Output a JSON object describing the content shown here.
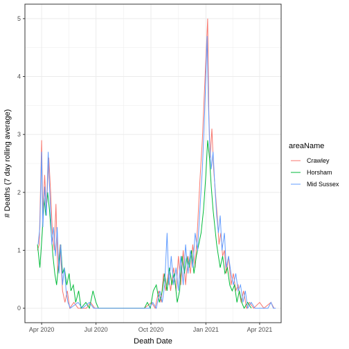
{
  "chart_data": {
    "type": "line",
    "xlabel": "Death Date",
    "ylabel": "# Deaths (7 day rolling average)",
    "xlim": [
      "2020-03-04",
      "2021-05-07"
    ],
    "ylim": [
      -0.25,
      5.25
    ],
    "x_ticks": [
      {
        "date": "2020-04-01",
        "label": "Apr 2020"
      },
      {
        "date": "2020-07-01",
        "label": "Jul 2020"
      },
      {
        "date": "2020-10-01",
        "label": "Oct 2020"
      },
      {
        "date": "2021-01-01",
        "label": "Jan 2021"
      },
      {
        "date": "2021-04-01",
        "label": "Apr 2021"
      }
    ],
    "y_ticks": [
      0,
      1,
      2,
      3,
      4,
      5
    ],
    "grid": true,
    "legend": {
      "title": "areaName",
      "position": "right"
    },
    "series": [
      {
        "name": "Crawley",
        "color": "#F8766D",
        "points": [
          [
            "2020-03-25",
            1.0
          ],
          [
            "2020-03-28",
            1.1
          ],
          [
            "2020-04-01",
            2.9
          ],
          [
            "2020-04-03",
            1.6
          ],
          [
            "2020-04-06",
            2.3
          ],
          [
            "2020-04-09",
            1.7
          ],
          [
            "2020-04-13",
            2.6
          ],
          [
            "2020-04-16",
            2.0
          ],
          [
            "2020-04-19",
            1.3
          ],
          [
            "2020-04-22",
            1.0
          ],
          [
            "2020-04-25",
            1.8
          ],
          [
            "2020-04-28",
            0.6
          ],
          [
            "2020-05-02",
            1.1
          ],
          [
            "2020-05-06",
            0.3
          ],
          [
            "2020-05-10",
            0.1
          ],
          [
            "2020-05-14",
            0.3
          ],
          [
            "2020-05-18",
            0.0
          ],
          [
            "2020-05-25",
            0.1
          ],
          [
            "2020-06-01",
            0.0
          ],
          [
            "2020-06-15",
            0.0
          ],
          [
            "2020-06-22",
            0.1
          ],
          [
            "2020-06-29",
            0.0
          ],
          [
            "2020-09-20",
            0.0
          ],
          [
            "2020-10-02",
            0.1
          ],
          [
            "2020-10-08",
            0.0
          ],
          [
            "2020-10-14",
            0.3
          ],
          [
            "2020-10-18",
            0.1
          ],
          [
            "2020-10-22",
            0.6
          ],
          [
            "2020-10-26",
            0.3
          ],
          [
            "2020-10-30",
            0.6
          ],
          [
            "2020-11-03",
            0.3
          ],
          [
            "2020-11-08",
            0.7
          ],
          [
            "2020-11-12",
            0.3
          ],
          [
            "2020-11-16",
            0.9
          ],
          [
            "2020-11-20",
            0.4
          ],
          [
            "2020-11-24",
            1.0
          ],
          [
            "2020-11-28",
            0.4
          ],
          [
            "2020-12-02",
            0.9
          ],
          [
            "2020-12-06",
            0.6
          ],
          [
            "2020-12-10",
            1.1
          ],
          [
            "2020-12-14",
            0.7
          ],
          [
            "2020-12-18",
            1.4
          ],
          [
            "2020-12-22",
            2.2
          ],
          [
            "2020-12-26",
            2.9
          ],
          [
            "2020-12-29",
            3.6
          ],
          [
            "2021-01-01",
            4.3
          ],
          [
            "2021-01-04",
            5.0
          ],
          [
            "2021-01-06",
            3.4
          ],
          [
            "2021-01-08",
            2.6
          ],
          [
            "2021-01-11",
            3.1
          ],
          [
            "2021-01-14",
            2.4
          ],
          [
            "2021-01-17",
            2.0
          ],
          [
            "2021-01-20",
            1.6
          ],
          [
            "2021-01-23",
            1.1
          ],
          [
            "2021-01-26",
            1.3
          ],
          [
            "2021-01-29",
            0.9
          ],
          [
            "2021-02-01",
            1.0
          ],
          [
            "2021-02-04",
            0.6
          ],
          [
            "2021-02-08",
            0.9
          ],
          [
            "2021-02-12",
            0.4
          ],
          [
            "2021-02-16",
            0.6
          ],
          [
            "2021-02-20",
            0.3
          ],
          [
            "2021-02-24",
            0.4
          ],
          [
            "2021-03-01",
            0.1
          ],
          [
            "2021-03-05",
            0.3
          ],
          [
            "2021-03-10",
            0.0
          ],
          [
            "2021-03-15",
            0.1
          ],
          [
            "2021-03-22",
            0.0
          ],
          [
            "2021-04-01",
            0.1
          ],
          [
            "2021-04-08",
            0.0
          ],
          [
            "2021-04-20",
            0.1
          ],
          [
            "2021-04-25",
            0.0
          ]
        ]
      },
      {
        "name": "Horsham",
        "color": "#00BA38",
        "points": [
          [
            "2020-03-25",
            1.1
          ],
          [
            "2020-03-29",
            0.7
          ],
          [
            "2020-04-02",
            1.3
          ],
          [
            "2020-04-05",
            1.9
          ],
          [
            "2020-04-08",
            1.6
          ],
          [
            "2020-04-11",
            2.0
          ],
          [
            "2020-04-14",
            1.7
          ],
          [
            "2020-04-17",
            1.3
          ],
          [
            "2020-04-20",
            0.9
          ],
          [
            "2020-04-23",
            0.6
          ],
          [
            "2020-04-26",
            0.4
          ],
          [
            "2020-04-29",
            0.7
          ],
          [
            "2020-05-03",
            1.1
          ],
          [
            "2020-05-06",
            0.6
          ],
          [
            "2020-05-09",
            0.7
          ],
          [
            "2020-05-13",
            0.4
          ],
          [
            "2020-05-17",
            0.6
          ],
          [
            "2020-05-20",
            0.3
          ],
          [
            "2020-05-24",
            0.4
          ],
          [
            "2020-05-28",
            0.1
          ],
          [
            "2020-06-02",
            0.3
          ],
          [
            "2020-06-06",
            0.0
          ],
          [
            "2020-06-14",
            0.1
          ],
          [
            "2020-06-20",
            0.0
          ],
          [
            "2020-06-26",
            0.3
          ],
          [
            "2020-07-01",
            0.1
          ],
          [
            "2020-07-05",
            0.0
          ],
          [
            "2020-09-20",
            0.0
          ],
          [
            "2020-09-25",
            0.1
          ],
          [
            "2020-09-30",
            0.0
          ],
          [
            "2020-10-05",
            0.3
          ],
          [
            "2020-10-10",
            0.4
          ],
          [
            "2020-10-15",
            0.1
          ],
          [
            "2020-10-20",
            0.3
          ],
          [
            "2020-10-24",
            0.6
          ],
          [
            "2020-10-28",
            0.3
          ],
          [
            "2020-11-01",
            0.7
          ],
          [
            "2020-11-05",
            0.4
          ],
          [
            "2020-11-09",
            0.6
          ],
          [
            "2020-11-14",
            0.1
          ],
          [
            "2020-11-18",
            0.3
          ],
          [
            "2020-11-22",
            0.9
          ],
          [
            "2020-11-26",
            0.6
          ],
          [
            "2020-11-30",
            0.9
          ],
          [
            "2020-12-04",
            0.7
          ],
          [
            "2020-12-08",
            1.0
          ],
          [
            "2020-12-12",
            0.6
          ],
          [
            "2020-12-16",
            0.9
          ],
          [
            "2020-12-20",
            1.1
          ],
          [
            "2020-12-24",
            1.3
          ],
          [
            "2020-12-28",
            1.7
          ],
          [
            "2021-01-01",
            2.3
          ],
          [
            "2021-01-04",
            2.9
          ],
          [
            "2021-01-07",
            2.6
          ],
          [
            "2021-01-10",
            2.1
          ],
          [
            "2021-01-13",
            1.7
          ],
          [
            "2021-01-16",
            1.4
          ],
          [
            "2021-01-19",
            1.1
          ],
          [
            "2021-01-22",
            0.9
          ],
          [
            "2021-01-25",
            0.7
          ],
          [
            "2021-01-29",
            0.9
          ],
          [
            "2021-02-02",
            0.6
          ],
          [
            "2021-02-06",
            0.7
          ],
          [
            "2021-02-10",
            0.4
          ],
          [
            "2021-02-14",
            0.3
          ],
          [
            "2021-02-18",
            0.4
          ],
          [
            "2021-02-22",
            0.1
          ],
          [
            "2021-02-26",
            0.3
          ],
          [
            "2021-03-02",
            0.1
          ],
          [
            "2021-03-06",
            0.0
          ],
          [
            "2021-03-12",
            0.1
          ],
          [
            "2021-03-18",
            0.0
          ]
        ]
      },
      {
        "name": "Mid Sussex",
        "color": "#619CFF",
        "points": [
          [
            "2020-03-26",
            1.1
          ],
          [
            "2020-03-29",
            1.4
          ],
          [
            "2020-04-01",
            2.7
          ],
          [
            "2020-04-03",
            1.4
          ],
          [
            "2020-04-06",
            2.1
          ],
          [
            "2020-04-09",
            1.6
          ],
          [
            "2020-04-12",
            2.7
          ],
          [
            "2020-04-15",
            1.9
          ],
          [
            "2020-04-18",
            1.1
          ],
          [
            "2020-04-21",
            1.4
          ],
          [
            "2020-04-24",
            0.9
          ],
          [
            "2020-04-27",
            1.4
          ],
          [
            "2020-04-30",
            0.6
          ],
          [
            "2020-05-03",
            1.1
          ],
          [
            "2020-05-06",
            0.4
          ],
          [
            "2020-05-09",
            0.7
          ],
          [
            "2020-05-12",
            0.3
          ],
          [
            "2020-05-15",
            0.1
          ],
          [
            "2020-05-19",
            0.0
          ],
          [
            "2020-06-01",
            0.1
          ],
          [
            "2020-06-08",
            0.0
          ],
          [
            "2020-06-20",
            0.1
          ],
          [
            "2020-06-27",
            0.0
          ],
          [
            "2020-09-28",
            0.0
          ],
          [
            "2020-10-04",
            0.1
          ],
          [
            "2020-10-10",
            0.0
          ],
          [
            "2020-10-16",
            0.3
          ],
          [
            "2020-10-20",
            0.1
          ],
          [
            "2020-10-24",
            0.4
          ],
          [
            "2020-10-28",
            1.3
          ],
          [
            "2020-10-31",
            0.4
          ],
          [
            "2020-11-04",
            0.9
          ],
          [
            "2020-11-08",
            0.4
          ],
          [
            "2020-11-12",
            0.7
          ],
          [
            "2020-11-16",
            0.3
          ],
          [
            "2020-11-20",
            0.9
          ],
          [
            "2020-11-24",
            0.4
          ],
          [
            "2020-11-28",
            1.1
          ],
          [
            "2020-12-02",
            0.6
          ],
          [
            "2020-12-06",
            1.0
          ],
          [
            "2020-12-10",
            0.7
          ],
          [
            "2020-12-14",
            1.3
          ],
          [
            "2020-12-18",
            1.0
          ],
          [
            "2020-12-22",
            1.7
          ],
          [
            "2020-12-26",
            2.4
          ],
          [
            "2020-12-29",
            3.1
          ],
          [
            "2021-01-01",
            4.0
          ],
          [
            "2021-01-03",
            4.7
          ],
          [
            "2021-01-05",
            3.6
          ],
          [
            "2021-01-07",
            2.9
          ],
          [
            "2021-01-10",
            2.4
          ],
          [
            "2021-01-13",
            2.7
          ],
          [
            "2021-01-16",
            2.1
          ],
          [
            "2021-01-19",
            1.6
          ],
          [
            "2021-01-22",
            1.3
          ],
          [
            "2021-01-25",
            1.6
          ],
          [
            "2021-01-28",
            1.0
          ],
          [
            "2021-02-01",
            1.3
          ],
          [
            "2021-02-04",
            0.7
          ],
          [
            "2021-02-08",
            0.9
          ],
          [
            "2021-02-12",
            0.6
          ],
          [
            "2021-02-16",
            0.4
          ],
          [
            "2021-02-20",
            0.6
          ],
          [
            "2021-02-24",
            0.3
          ],
          [
            "2021-02-28",
            0.4
          ],
          [
            "2021-03-04",
            0.1
          ],
          [
            "2021-03-08",
            0.3
          ],
          [
            "2021-03-12",
            0.0
          ],
          [
            "2021-03-18",
            0.1
          ],
          [
            "2021-03-24",
            0.0
          ],
          [
            "2021-04-15",
            0.0
          ],
          [
            "2021-04-20",
            0.1
          ],
          [
            "2021-04-24",
            0.0
          ],
          [
            "2021-04-28",
            0.0
          ]
        ]
      }
    ]
  }
}
